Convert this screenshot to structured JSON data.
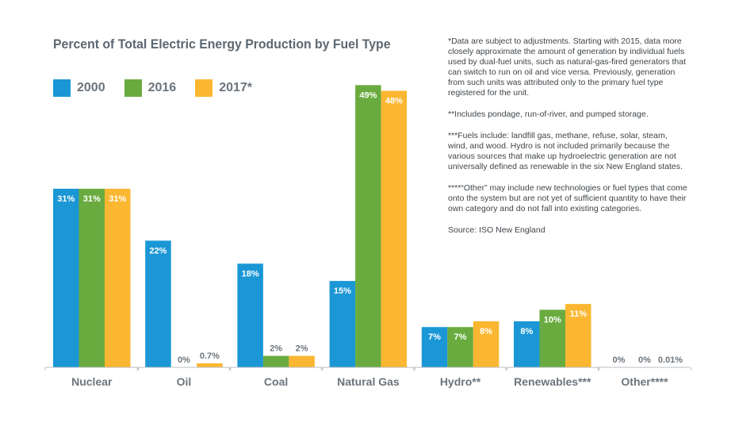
{
  "chart_data": {
    "type": "bar",
    "title": "Percent of Total Electric Energy Production by Fuel Type",
    "categories": [
      "Nuclear",
      "Oil",
      "Coal",
      "Natural Gas",
      "Hydro**",
      "Renewables***",
      "Other****"
    ],
    "series": [
      {
        "name": "2000",
        "color": "#1b97d6",
        "values": [
          31,
          22,
          18,
          15,
          7,
          8,
          0
        ],
        "labels": [
          "31%",
          "22%",
          "18%",
          "15%",
          "7%",
          "8%",
          "0%"
        ]
      },
      {
        "name": "2016",
        "color": "#6aab3f",
        "values": [
          31,
          0,
          2,
          49,
          7,
          10,
          0
        ],
        "labels": [
          "31%",
          "0%",
          "2%",
          "49%",
          "7%",
          "10%",
          "0%"
        ]
      },
      {
        "name": "2017*",
        "color": "#fbb731",
        "values": [
          31,
          0.7,
          2,
          48,
          8,
          11,
          0.01
        ],
        "labels": [
          "31%",
          "0.7%",
          "2%",
          "48%",
          "8%",
          "11%",
          "0.01%"
        ]
      }
    ],
    "ylim": [
      0,
      50
    ],
    "xlabel": "",
    "ylabel": "",
    "grid": false,
    "legend": "top-left"
  },
  "notes": [
    "*Data are subject to adjustments. Starting with 2015, data more closely approximate the amount of generation by individual fuels used by dual-fuel units, such as natural-gas-fired generators that can switch to run on oil and vice versa. Previously, generation from such units was attributed only to the primary fuel type registered for the unit.",
    "**Includes pondage, run-of-river, and pumped storage.",
    "***Fuels include: landfill gas, methane, refuse, solar, steam, wind, and wood. Hydro is not included primarily because the various sources that make up hydroelectric generation are not universally defined as renewable in the six New England states.",
    "****“Other” may include new technologies or fuel types that come onto the system but are not yet of sufficient quantity to have their own category and do not fall into existing categories.",
    "Source: ISO New England"
  ]
}
